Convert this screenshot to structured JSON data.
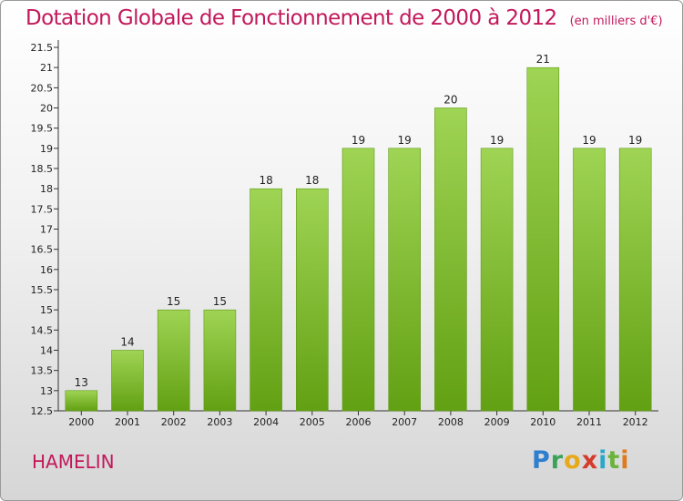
{
  "chart_data": {
    "type": "bar",
    "title": "Dotation Globale de Fonctionnement de 2000 à 2012",
    "subtitle": "(en milliers d'€)",
    "categories": [
      "2000",
      "2001",
      "2002",
      "2003",
      "2004",
      "2005",
      "2006",
      "2007",
      "2008",
      "2009",
      "2010",
      "2011",
      "2012"
    ],
    "values": [
      13,
      14,
      15,
      15,
      18,
      18,
      19,
      19,
      20,
      19,
      21,
      19,
      19
    ],
    "ylim": [
      12.5,
      21.5
    ],
    "yticks": [
      "12.5",
      "13",
      "13.5",
      "14",
      "14.5",
      "15",
      "15.5",
      "16",
      "16.5",
      "17",
      "17.5",
      "18",
      "18.5",
      "19",
      "19.5",
      "20",
      "20.5",
      "21",
      "21.5"
    ],
    "grid": false,
    "bar_color": "#8cc63f"
  },
  "commune": "HAMELIN",
  "brand": {
    "logo_text": "Proxiti"
  }
}
